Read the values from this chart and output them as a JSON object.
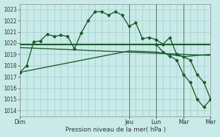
{
  "background_color": "#c8eae8",
  "grid_color": "#a0ccca",
  "line_color": "#1a5c2a",
  "marker_color": "#1a5c2a",
  "xlabel": "Pression niveau de la mer( hPa )",
  "ylim": [
    1013.5,
    1023.5
  ],
  "yticks": [
    1014,
    1015,
    1016,
    1017,
    1018,
    1019,
    1020,
    1021,
    1022,
    1023
  ],
  "day_labels": [
    "Dim",
    "Jeu",
    "Lun",
    "Mar",
    "Mer"
  ],
  "day_x": [
    0,
    4,
    5,
    6,
    7
  ],
  "xlim": [
    0,
    7
  ],
  "vline_x": [
    4,
    5,
    6
  ],
  "series1_x": [
    0,
    0.25,
    0.5,
    0.75,
    1.0,
    1.25,
    1.5,
    1.75,
    2.0,
    2.25,
    2.5,
    2.75,
    3.0,
    3.25,
    3.5,
    3.75,
    4.0,
    4.25,
    4.5,
    4.75,
    5.0,
    5.25,
    5.5,
    5.75,
    6.0,
    6.25,
    6.5,
    6.75,
    7.0
  ],
  "series1_y": [
    1017.4,
    1018.0,
    1020.1,
    1020.2,
    1020.8,
    1020.6,
    1020.7,
    1020.6,
    1019.5,
    1020.9,
    1022.0,
    1022.8,
    1022.8,
    1022.5,
    1022.8,
    1022.5,
    1021.5,
    1021.8,
    1020.4,
    1020.5,
    1020.3,
    1019.9,
    1020.5,
    1019.0,
    1018.8,
    1018.5,
    1017.2,
    1016.5,
    1015.0
  ],
  "series2_x": [
    0,
    7
  ],
  "series2_y": [
    1019.9,
    1019.9
  ],
  "series3_x": [
    0,
    7
  ],
  "series3_y": [
    1019.6,
    1018.9
  ],
  "series4_x": [
    0,
    4,
    5,
    6,
    7
  ],
  "series4_y": [
    1017.4,
    1019.3,
    1019.2,
    1018.8,
    1019.0
  ],
  "series5_x": [
    5,
    5.25,
    5.5,
    5.75,
    6.0,
    6.25,
    6.5,
    6.75,
    7.0
  ],
  "series5_y": [
    1019.9,
    1019.2,
    1018.85,
    1018.5,
    1017.2,
    1016.5,
    1015.0,
    1014.3,
    1015.0
  ]
}
